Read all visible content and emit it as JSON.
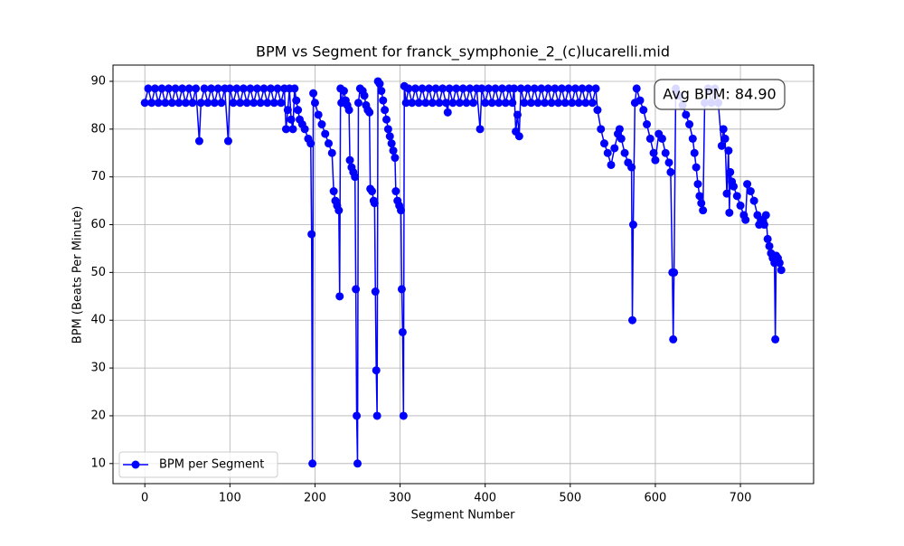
{
  "chart_data": {
    "type": "line",
    "title": "BPM vs Segment for franck_symphonie_2_(c)lucarelli.mid",
    "xlabel": "Segment Number",
    "ylabel": "BPM (Beats Per Minute)",
    "annotation": "Avg BPM: 84.90",
    "legend": "lower left",
    "grid": true,
    "xlim": [
      -37.4,
      786
    ],
    "xticks": [
      0,
      100,
      200,
      300,
      400,
      500,
      600,
      700
    ],
    "ylim": [
      5.8,
      93.4
    ],
    "yticks": [
      10,
      20,
      30,
      40,
      50,
      60,
      70,
      80,
      90
    ],
    "x": [
      0,
      4,
      8,
      12,
      16,
      20,
      24,
      28,
      32,
      36,
      40,
      44,
      48,
      52,
      56,
      60,
      64,
      66,
      70,
      74,
      78,
      82,
      86,
      90,
      94,
      98,
      100,
      104,
      108,
      112,
      116,
      120,
      124,
      128,
      132,
      136,
      140,
      144,
      148,
      152,
      156,
      160,
      164,
      166,
      168,
      170,
      172,
      174,
      176,
      178,
      180,
      182,
      185,
      188,
      192,
      195,
      196,
      197,
      198,
      200,
      204,
      208,
      212,
      216,
      220,
      222,
      224,
      226,
      228,
      229,
      230,
      231,
      234,
      236,
      238,
      240,
      241,
      243,
      245,
      247,
      248,
      249,
      250,
      251,
      253,
      256,
      258,
      260,
      262,
      264,
      265,
      267,
      269,
      270,
      271,
      272,
      273,
      274,
      276,
      278,
      280,
      282,
      284,
      286,
      288,
      290,
      292,
      294,
      295,
      297,
      299,
      301,
      302,
      303,
      304,
      305,
      307,
      310,
      314,
      318,
      322,
      326,
      330,
      334,
      338,
      342,
      346,
      350,
      354,
      356,
      358,
      362,
      366,
      370,
      374,
      378,
      382,
      386,
      390,
      394,
      396,
      400,
      404,
      408,
      412,
      416,
      420,
      424,
      428,
      432,
      434,
      436,
      438,
      440,
      442,
      446,
      450,
      454,
      458,
      462,
      466,
      470,
      474,
      478,
      482,
      486,
      490,
      494,
      498,
      502,
      506,
      510,
      514,
      518,
      522,
      526,
      530,
      532,
      536,
      540,
      544,
      548,
      552,
      556,
      558,
      560,
      564,
      568,
      572,
      573,
      574,
      576,
      578,
      582,
      586,
      590,
      594,
      598,
      600,
      604,
      608,
      612,
      616,
      618,
      620,
      621,
      622,
      624,
      628,
      632,
      636,
      640,
      644,
      646,
      648,
      650,
      652,
      654,
      656,
      658,
      662,
      666,
      670,
      674,
      678,
      680,
      682,
      684,
      686,
      687,
      688,
      690,
      692,
      696,
      700,
      704,
      706,
      708,
      712,
      716,
      720,
      722,
      724,
      728,
      730,
      732,
      734,
      736,
      738,
      740,
      741,
      742,
      744,
      746,
      748
    ],
    "series": [
      {
        "name": "BPM per Segment",
        "color": "#0000ff",
        "values": [
          85.5,
          88.5,
          85.5,
          88.5,
          85.5,
          88.5,
          85.5,
          88.5,
          85.5,
          88.5,
          85.5,
          88.5,
          85.5,
          88.5,
          85.5,
          88.5,
          77.5,
          85.5,
          88.5,
          85.5,
          88.5,
          85.5,
          88.5,
          85.5,
          88.5,
          77.5,
          88.5,
          85.5,
          88.5,
          85.5,
          88.5,
          85.5,
          88.5,
          85.5,
          88.5,
          85.5,
          88.5,
          85.5,
          88.5,
          85.5,
          88.5,
          85.5,
          88.5,
          80,
          84,
          88.5,
          82,
          80,
          88.5,
          86,
          84,
          82,
          81,
          80,
          78,
          77,
          58,
          10,
          87.5,
          85.5,
          83,
          81,
          79,
          77,
          75,
          67,
          65,
          64,
          63,
          45,
          88.5,
          85.5,
          88,
          86,
          85,
          84,
          73.5,
          72,
          71,
          70,
          46.5,
          20,
          10,
          85.5,
          88.5,
          88,
          87,
          85,
          84,
          83.5,
          67.5,
          67,
          65,
          64.5,
          46,
          29.5,
          20,
          90,
          89.5,
          88,
          86,
          84,
          82,
          80,
          78.5,
          77,
          75.5,
          74,
          67,
          65,
          64,
          63,
          46.5,
          37.5,
          20,
          89,
          85.5,
          88.5,
          85.5,
          88.5,
          85.5,
          88.5,
          85.5,
          88.5,
          85.5,
          88.5,
          85.5,
          88.5,
          85.5,
          83.5,
          88.5,
          85.5,
          88.5,
          85.5,
          88.5,
          85.5,
          88.5,
          85.5,
          88.5,
          80,
          88.5,
          85.5,
          88.5,
          85.5,
          88.5,
          85.5,
          88.5,
          85.5,
          88.5,
          85.5,
          88.5,
          79.5,
          83,
          78.5,
          88.5,
          85.5,
          88.5,
          85.5,
          88.5,
          85.5,
          88.5,
          85.5,
          88.5,
          85.5,
          88.5,
          85.5,
          88.5,
          85.5,
          88.5,
          85.5,
          88.5,
          85.5,
          88.5,
          85.5,
          88.5,
          85.5,
          88.5,
          84,
          80,
          77,
          75,
          72.5,
          76,
          79,
          80,
          78,
          75,
          73,
          72,
          40,
          60,
          85.5,
          88.5,
          86,
          84,
          81,
          78,
          75,
          73.5,
          79,
          78,
          75,
          73,
          71,
          50,
          36,
          50,
          88.5,
          87,
          85,
          83,
          81,
          78,
          75,
          72,
          68.5,
          66,
          64.5,
          63,
          85.5,
          88.5,
          85.5,
          88.5,
          85.5,
          76.5,
          80,
          78,
          66.5,
          75.5,
          62.5,
          71,
          69,
          68,
          66,
          64,
          62,
          61,
          68.5,
          67,
          65,
          62,
          60,
          61,
          60,
          62,
          57,
          55.5,
          54,
          53,
          52,
          36,
          53.5,
          53,
          52,
          50.5
        ]
      }
    ]
  }
}
